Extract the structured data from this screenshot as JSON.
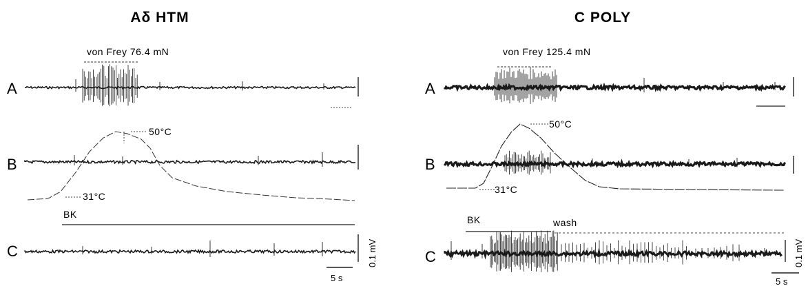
{
  "panels": [
    {
      "title": "Aδ HTM",
      "rows": [
        {
          "label": "A",
          "annotation": "von Frey 76.4 mN"
        },
        {
          "label": "B",
          "peak_temp": "50°C",
          "base_temp": "31°C"
        },
        {
          "label": "C",
          "drug": "BK"
        }
      ],
      "scalebars": {
        "voltage": "0.1 mV",
        "time": "5 s"
      }
    },
    {
      "title": "C POLY",
      "rows": [
        {
          "label": "A",
          "annotation": "von Frey 125.4 mN"
        },
        {
          "label": "B",
          "peak_temp": "50°C",
          "base_temp": "31°C"
        },
        {
          "label": "C",
          "drug": "BK",
          "wash": "wash"
        }
      ],
      "scalebars": {
        "voltage": "0.1 mV",
        "time": "5 s"
      }
    }
  ]
}
